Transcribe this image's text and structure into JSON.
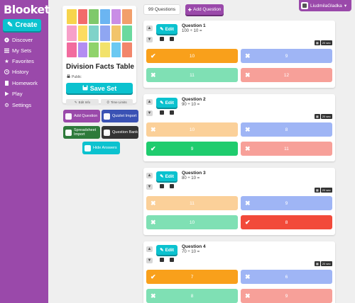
{
  "sidebar": {
    "logo": "Blooket",
    "create_label": "Create",
    "items": [
      {
        "label": "Discover",
        "icon": "compass-icon"
      },
      {
        "label": "My Sets",
        "icon": "list-icon"
      },
      {
        "label": "Favorites",
        "icon": "star-icon"
      },
      {
        "label": "History",
        "icon": "clock-icon"
      },
      {
        "label": "Homework",
        "icon": "document-icon"
      },
      {
        "label": "Play",
        "icon": "play-icon"
      },
      {
        "label": "Settings",
        "icon": "gear-icon"
      }
    ]
  },
  "topbar": {
    "question_count": "99 Questions",
    "add_question": "Add Question",
    "user": "LiudmilaGladka"
  },
  "set": {
    "title": "Division Facts Table",
    "visibility": "Public",
    "save_label": "Save Set",
    "edit_info": "Edit Info",
    "time_limits": "Time Limits",
    "actions": [
      {
        "label": "Add Question",
        "color": "#9a49aa"
      },
      {
        "label": "Quizlet Import",
        "color": "#3a52b4"
      },
      {
        "label": "Spreadsheet Import",
        "color": "#2d7a3a"
      },
      {
        "label": "Question Bank",
        "color": "#333333"
      },
      {
        "label": "Hide Answers",
        "color": "#0bc2cf"
      }
    ],
    "thumb_colors": [
      "#f7d44c",
      "#f26b6b",
      "#7fc96b",
      "#6bb5f2",
      "#c98de6",
      "#f29f6b",
      "#f7a0c9",
      "#fcdc62",
      "#7fd3c9",
      "#8fa6f2",
      "#f2c46b",
      "#6bd99e",
      "#f26b9e",
      "#b38df2",
      "#8fd36b",
      "#f2e26b",
      "#6bc9f2",
      "#f2866b"
    ]
  },
  "questions": [
    {
      "num": "Question 1",
      "text": "100 ÷ 10 =",
      "time": "20 sec",
      "answers": [
        {
          "text": "10",
          "correct": true,
          "color": "#f9a01b"
        },
        {
          "text": "9",
          "correct": false,
          "color": "#9fb5f5"
        },
        {
          "text": "11",
          "correct": false,
          "color": "#7fe0b4"
        },
        {
          "text": "12",
          "correct": false,
          "color": "#f7a099"
        }
      ]
    },
    {
      "num": "Question 2",
      "text": "90 ÷ 10 =",
      "time": "20 sec",
      "answers": [
        {
          "text": "10",
          "correct": false,
          "color": "#fbd099"
        },
        {
          "text": "8",
          "correct": false,
          "color": "#9fb5f5"
        },
        {
          "text": "9",
          "correct": true,
          "color": "#1fcc6e"
        },
        {
          "text": "11",
          "correct": false,
          "color": "#f7a099"
        }
      ]
    },
    {
      "num": "Question 3",
      "text": "80 ÷ 10 =",
      "time": "20 sec",
      "answers": [
        {
          "text": "11",
          "correct": false,
          "color": "#fbd099"
        },
        {
          "text": "9",
          "correct": false,
          "color": "#9fb5f5"
        },
        {
          "text": "10",
          "correct": false,
          "color": "#7fe0b4"
        },
        {
          "text": "8",
          "correct": true,
          "color": "#f24a3a"
        }
      ]
    },
    {
      "num": "Question 4",
      "text": "70 ÷ 10 =",
      "time": "20 sec",
      "answers": [
        {
          "text": "7",
          "correct": true,
          "color": "#f9a01b"
        },
        {
          "text": "6",
          "correct": false,
          "color": "#9fb5f5"
        },
        {
          "text": "8",
          "correct": false,
          "color": "#7fe0b4"
        },
        {
          "text": "9",
          "correct": false,
          "color": "#f7a099"
        }
      ]
    }
  ]
}
